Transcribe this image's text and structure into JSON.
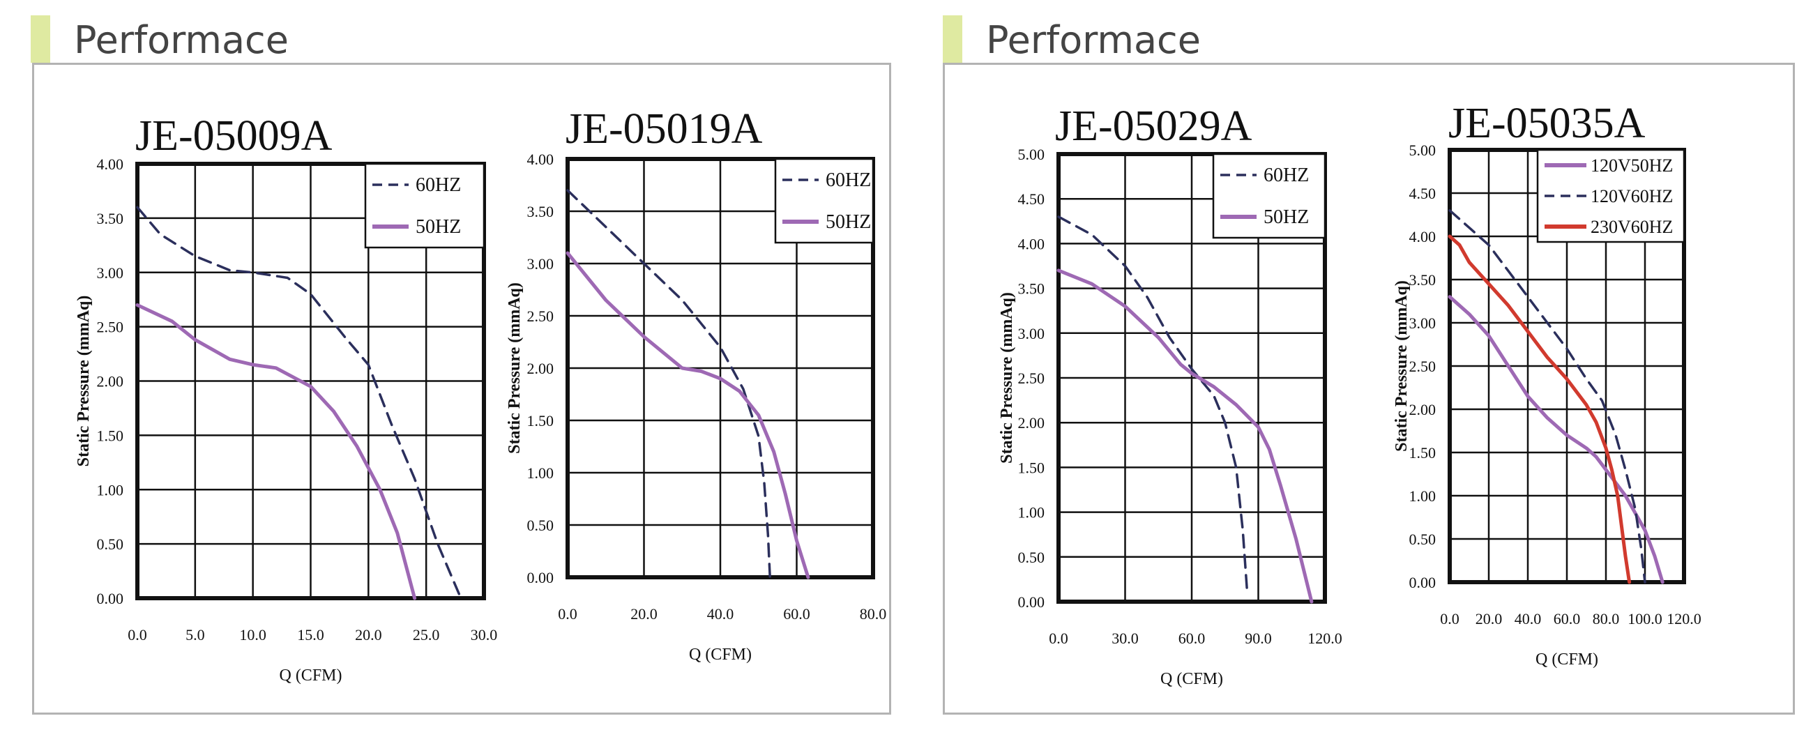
{
  "theme": {
    "accent_color": "#dfeaa1",
    "title_color": "#444444",
    "border_color": "#b3b3b3"
  },
  "panels": [
    {
      "title": "Performace"
    },
    {
      "title": "Performace"
    }
  ],
  "chart_data": [
    {
      "type": "line",
      "title": "JE-05009A",
      "xlabel": "Q (CFM)",
      "ylabel": "Static Pressure (mmAq)",
      "xlim": [
        0,
        30
      ],
      "ylim": [
        0,
        4
      ],
      "xticks": [
        0,
        5,
        10,
        15,
        20,
        25,
        30
      ],
      "xtick_labels": [
        "0.0",
        "5.0",
        "10.0",
        "15.0",
        "20.0",
        "25.0",
        "30.0"
      ],
      "yticks": [
        0,
        0.5,
        1,
        1.5,
        2,
        2.5,
        3,
        3.5,
        4
      ],
      "ytick_labels": [
        "0.00",
        "0.50",
        "1.00",
        "1.50",
        "2.00",
        "2.50",
        "3.00",
        "3.50",
        "4.00"
      ],
      "grid": true,
      "legend_position": "top-right",
      "series": [
        {
          "name": "60HZ",
          "style": "dashed",
          "color": "#2b2f5c",
          "x": [
            0,
            2,
            5,
            8,
            10,
            13,
            15,
            18,
            20,
            22,
            24,
            26,
            28
          ],
          "y": [
            3.6,
            3.35,
            3.15,
            3.02,
            3.0,
            2.95,
            2.8,
            2.4,
            2.15,
            1.6,
            1.1,
            0.5,
            0
          ]
        },
        {
          "name": "50HZ",
          "style": "solid",
          "color": "#9e69b4",
          "x": [
            0,
            3,
            5,
            8,
            10,
            12,
            15,
            17,
            19,
            21,
            22.5,
            24
          ],
          "y": [
            2.7,
            2.55,
            2.38,
            2.2,
            2.15,
            2.12,
            1.95,
            1.72,
            1.4,
            1.0,
            0.6,
            0
          ]
        }
      ]
    },
    {
      "type": "line",
      "title": "JE-05019A",
      "xlabel": "Q (CFM)",
      "ylabel": "Static Pressure (mmAq)",
      "xlim": [
        0,
        80
      ],
      "ylim": [
        0,
        4
      ],
      "xticks": [
        0,
        20,
        40,
        60,
        80
      ],
      "xtick_labels": [
        "0.0",
        "20.0",
        "40.0",
        "60.0",
        "80.0"
      ],
      "yticks": [
        0,
        0.5,
        1,
        1.5,
        2,
        2.5,
        3,
        3.5,
        4
      ],
      "ytick_labels": [
        "0.00",
        "0.50",
        "1.00",
        "1.50",
        "2.00",
        "2.50",
        "3.00",
        "3.50",
        "4.00"
      ],
      "grid": true,
      "legend_position": "top-right",
      "series": [
        {
          "name": "60HZ",
          "style": "dashed",
          "color": "#2b2f5c",
          "x": [
            0,
            10,
            20,
            30,
            40,
            46,
            50,
            51.5,
            52.5,
            53
          ],
          "y": [
            3.7,
            3.35,
            3.0,
            2.65,
            2.2,
            1.8,
            1.35,
            0.9,
            0.4,
            0
          ]
        },
        {
          "name": "50HZ",
          "style": "solid",
          "color": "#9e69b4",
          "x": [
            0,
            10,
            20,
            30,
            35,
            40,
            45,
            50,
            54,
            57,
            60,
            63
          ],
          "y": [
            3.1,
            2.65,
            2.3,
            2.0,
            1.97,
            1.9,
            1.78,
            1.55,
            1.2,
            0.8,
            0.35,
            0
          ]
        }
      ]
    },
    {
      "type": "line",
      "title": "JE-05029A",
      "xlabel": "Q (CFM)",
      "ylabel": "Static Pressure (mmAq)",
      "xlim": [
        0,
        120
      ],
      "ylim": [
        0,
        5
      ],
      "xticks": [
        0,
        30,
        60,
        90,
        120
      ],
      "xtick_labels": [
        "0.0",
        "30.0",
        "60.0",
        "90.0",
        "120.0"
      ],
      "yticks": [
        0,
        0.5,
        1,
        1.5,
        2,
        2.5,
        3,
        3.5,
        4,
        4.5,
        5
      ],
      "ytick_labels": [
        "0.00",
        "0.50",
        "1.00",
        "1.50",
        "2.00",
        "2.50",
        "3.00",
        "3.50",
        "4.00",
        "4.50",
        "5.00"
      ],
      "grid": true,
      "legend_position": "top-right",
      "series": [
        {
          "name": "60HZ",
          "style": "dashed",
          "color": "#2b2f5c",
          "x": [
            0,
            15,
            30,
            40,
            50,
            60,
            70,
            75,
            80,
            83,
            85
          ],
          "y": [
            4.3,
            4.1,
            3.75,
            3.4,
            2.95,
            2.6,
            2.3,
            2.0,
            1.5,
            0.8,
            0.1
          ]
        },
        {
          "name": "50HZ",
          "style": "solid",
          "color": "#9e69b4",
          "x": [
            0,
            15,
            30,
            45,
            55,
            60,
            70,
            80,
            90,
            95,
            100,
            107,
            114
          ],
          "y": [
            3.7,
            3.55,
            3.3,
            2.95,
            2.65,
            2.55,
            2.4,
            2.2,
            1.95,
            1.7,
            1.3,
            0.7,
            0
          ]
        }
      ]
    },
    {
      "type": "line",
      "title": "JE-05035A",
      "xlabel": "Q (CFM)",
      "ylabel": "Static Pressure (mmAq)",
      "xlim": [
        0,
        120
      ],
      "ylim": [
        0,
        5
      ],
      "xticks": [
        0,
        20,
        40,
        60,
        80,
        100,
        120
      ],
      "xtick_labels": [
        "0.0",
        "20.0",
        "40.0",
        "60.0",
        "80.0",
        "100.0",
        "120.0"
      ],
      "yticks": [
        0,
        0.5,
        1,
        1.5,
        2,
        2.5,
        3,
        3.5,
        4,
        4.5,
        5
      ],
      "ytick_labels": [
        "0.00",
        "0.50",
        "1.00",
        "1.50",
        "2.00",
        "2.50",
        "3.00",
        "3.50",
        "4.00",
        "4.50",
        "5.00"
      ],
      "grid": true,
      "legend_position": "top-right",
      "series": [
        {
          "name": "120V50HZ",
          "style": "solid",
          "color": "#9e69b4",
          "x": [
            0,
            10,
            20,
            30,
            40,
            50,
            60,
            70,
            75,
            80,
            85,
            90,
            95,
            100,
            105,
            109
          ],
          "y": [
            3.3,
            3.1,
            2.85,
            2.5,
            2.15,
            1.9,
            1.7,
            1.55,
            1.45,
            1.3,
            1.15,
            1.0,
            0.8,
            0.6,
            0.3,
            0
          ]
        },
        {
          "name": "120V60HZ",
          "style": "dashed",
          "color": "#2b2f5c",
          "x": [
            0,
            10,
            20,
            30,
            40,
            50,
            60,
            70,
            78,
            85,
            90,
            95,
            98,
            100
          ],
          "y": [
            4.3,
            4.1,
            3.9,
            3.6,
            3.3,
            3.0,
            2.7,
            2.35,
            2.1,
            1.7,
            1.3,
            0.85,
            0.4,
            0
          ]
        },
        {
          "name": "230V60HZ",
          "style": "solid",
          "color": "#d13a2e",
          "x": [
            0,
            5,
            10,
            20,
            30,
            40,
            50,
            60,
            70,
            75,
            80,
            83,
            86,
            88,
            90,
            92
          ],
          "y": [
            4.0,
            3.9,
            3.7,
            3.45,
            3.2,
            2.9,
            2.6,
            2.35,
            2.05,
            1.85,
            1.55,
            1.3,
            1.0,
            0.65,
            0.3,
            0
          ]
        }
      ]
    }
  ]
}
